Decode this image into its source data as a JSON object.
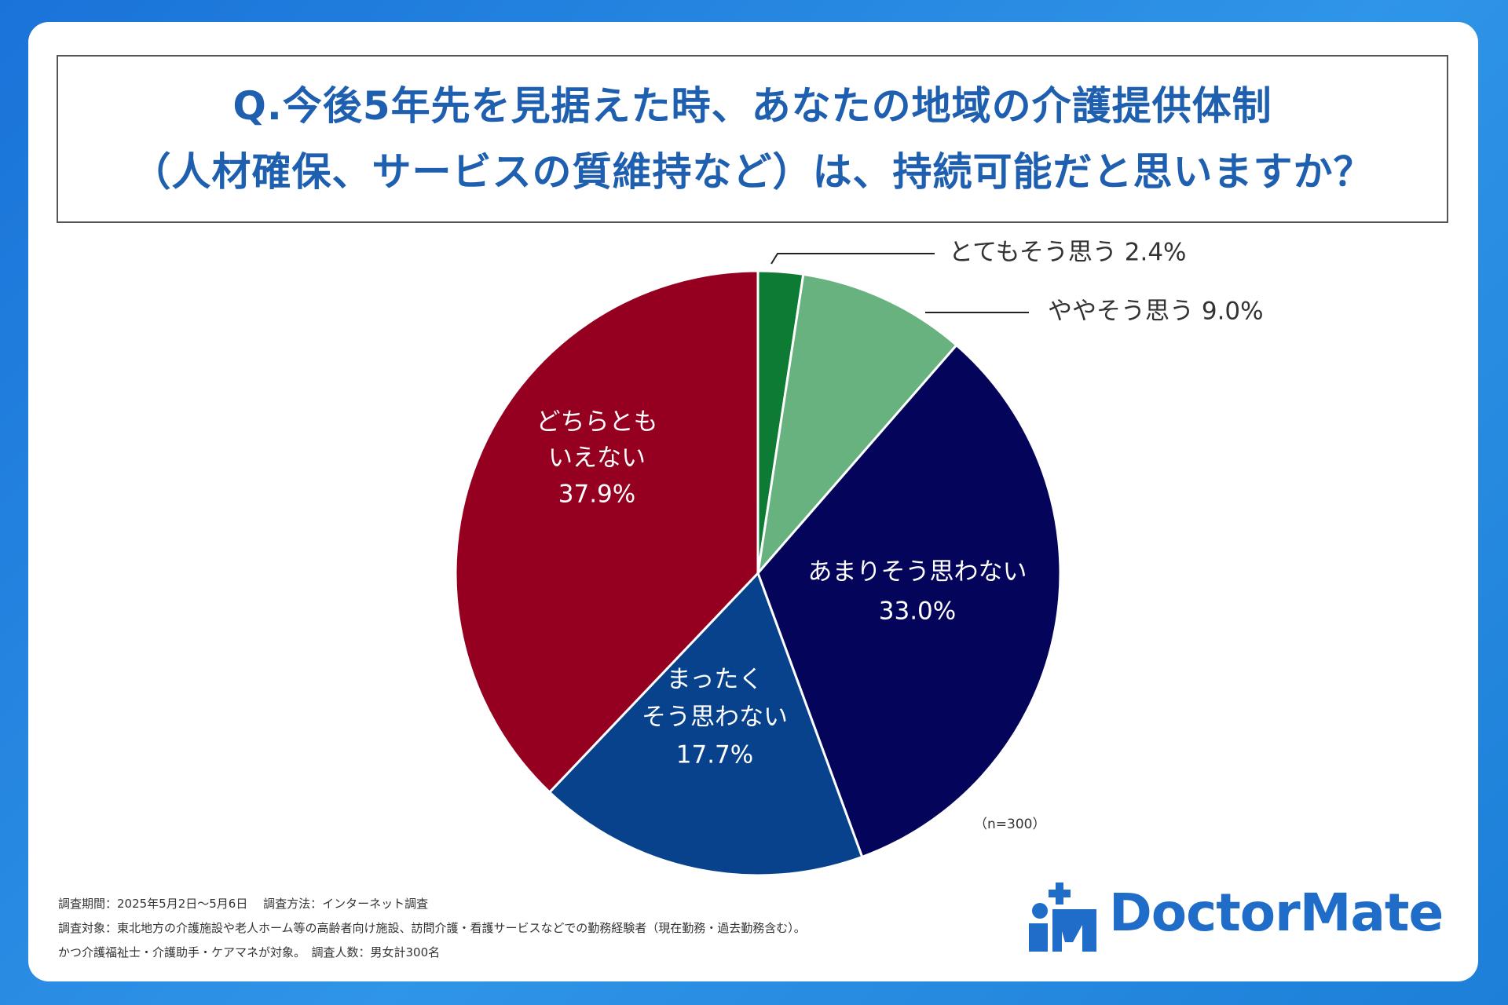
{
  "title": {
    "line1": "Q.今後5年先を見据えた時、あなたの地域の介護提供体制",
    "line2": "（人材確保、サービスの質維持など）は、持続可能だと思いますか？"
  },
  "chart_data": {
    "type": "pie",
    "slices": [
      {
        "label_lines": [
          "とてもそう思う"
        ],
        "value": 2.4,
        "value_label": "2.4%",
        "color": "#0e7b34",
        "label_style": "leader"
      },
      {
        "label_lines": [
          "ややそう思う"
        ],
        "value": 9.0,
        "value_label": "9.0%",
        "color": "#68b27f",
        "label_style": "leader"
      },
      {
        "label_lines": [
          "あまりそう思わない"
        ],
        "value": 33.0,
        "value_label": "33.0%",
        "color": "#04045a",
        "label_style": "inside"
      },
      {
        "label_lines": [
          "まったく",
          "そう思わない"
        ],
        "value": 17.7,
        "value_label": "17.7%",
        "color": "#08428d",
        "label_style": "inside"
      },
      {
        "label_lines": [
          "どちらとも",
          "いえない"
        ],
        "value": 37.9,
        "value_label": "37.9%",
        "color": "#960020",
        "label_style": "inside"
      }
    ],
    "sample_note": "（n=300）"
  },
  "footnotes": [
    "調査期間：2025年5月2日〜5月6日　 調査方法：インターネット調査",
    "調査対象：東北地方の介護施設や老人ホーム等の高齢者向け施設、訪問介護・看護サービスなどでの勤務経験者（現在勤務・過去勤務含む）。",
    "かつ介護福祉士・介護助手・ケアマネが対象。　調査人数：男女計300名"
  ],
  "logo": {
    "text": "DoctorMate",
    "icon": "doctormate-logo-icon",
    "color": "#1f6cc9"
  }
}
